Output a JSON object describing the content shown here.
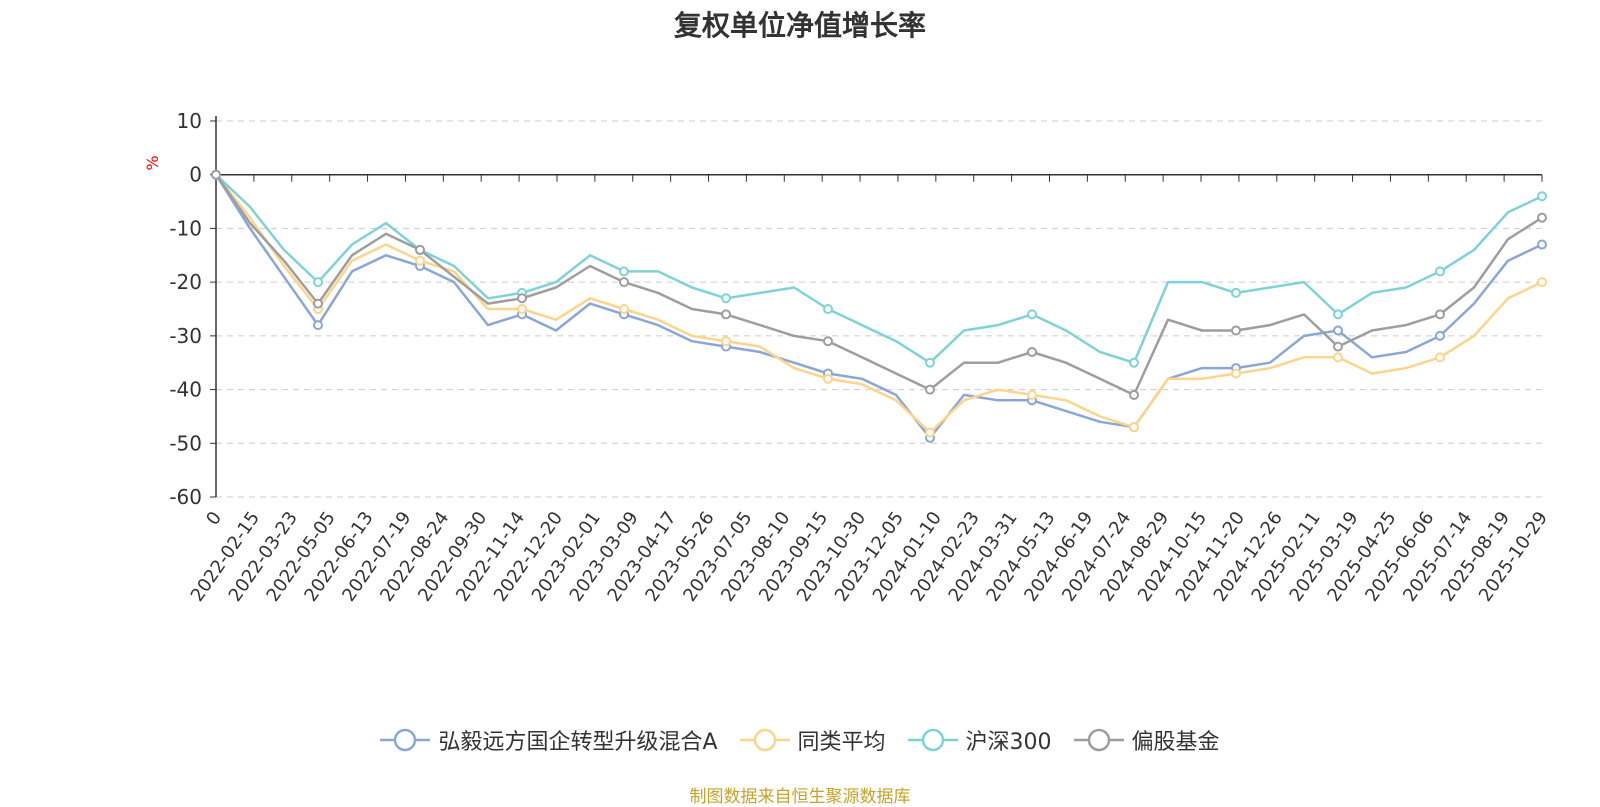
{
  "chart_data": {
    "type": "line",
    "title": "复权单位净值增长率",
    "ylabel": "%",
    "ylim": [
      -60,
      10
    ],
    "yticks": [
      10,
      0,
      -10,
      -20,
      -30,
      -40,
      -50,
      -60
    ],
    "grid": true,
    "legend_position": "bottom",
    "x_tick_labels": [
      "0",
      "2022-02-15",
      "2022-03-23",
      "2022-05-05",
      "2022-06-13",
      "2022-07-19",
      "2022-08-24",
      "2022-09-30",
      "2022-11-14",
      "2022-12-20",
      "2023-02-01",
      "2023-03-09",
      "2023-04-17",
      "2023-05-26",
      "2023-07-05",
      "2023-08-10",
      "2023-09-15",
      "2023-10-30",
      "2023-12-05",
      "2024-01-10",
      "2024-02-23",
      "2024-03-31",
      "2024-05-13",
      "2024-06-19",
      "2024-07-24",
      "2024-08-29",
      "2024-10-15",
      "2024-11-20",
      "2024-12-26",
      "2025-02-11",
      "2025-03-19",
      "2025-04-25",
      "2025-06-06",
      "2025-07-14",
      "2025-08-19",
      "2025-10-29"
    ],
    "series": [
      {
        "name": "弘毅远方国企转型升级混合A",
        "color": "#8aa7d8",
        "values": [
          0,
          -10,
          -19,
          -28,
          -18,
          -15,
          -17,
          -20,
          -28,
          -26,
          -29,
          -24,
          -26,
          -28,
          -31,
          -32,
          -33,
          -35,
          -37,
          -38,
          -41,
          -49,
          -41,
          -42,
          -42,
          -44,
          -46,
          -47,
          -38,
          -36,
          -36,
          -35,
          -30,
          -29,
          -34,
          -33,
          -30,
          -24,
          -16,
          -13
        ]
      },
      {
        "name": "同类平均",
        "color": "#fdd58a",
        "values": [
          0,
          -8,
          -17,
          -25,
          -16,
          -13,
          -16,
          -18,
          -25,
          -25,
          -27,
          -23,
          -25,
          -27,
          -30,
          -31,
          -32,
          -36,
          -38,
          -39,
          -42,
          -48,
          -42,
          -40,
          -41,
          -42,
          -45,
          -47,
          -38,
          -38,
          -37,
          -36,
          -34,
          -34,
          -37,
          -36,
          -34,
          -30,
          -23,
          -20
        ]
      },
      {
        "name": "沪深300",
        "color": "#7ed3d6",
        "values": [
          0,
          -6,
          -14,
          -20,
          -13,
          -9,
          -14,
          -17,
          -23,
          -22,
          -20,
          -15,
          -18,
          -18,
          -21,
          -23,
          -22,
          -21,
          -25,
          -28,
          -31,
          -35,
          -29,
          -28,
          -26,
          -29,
          -33,
          -35,
          -20,
          -20,
          -22,
          -21,
          -20,
          -26,
          -22,
          -21,
          -18,
          -14,
          -7,
          -4
        ]
      },
      {
        "name": "偏股基金",
        "color": "#9e9e9e",
        "values": [
          0,
          -9,
          -16,
          -24,
          -15,
          -11,
          -14,
          -19,
          -24,
          -23,
          -21,
          -17,
          -20,
          -22,
          -25,
          -26,
          -28,
          -30,
          -31,
          -34,
          -37,
          -40,
          -35,
          -35,
          -33,
          -35,
          -38,
          -41,
          -27,
          -29,
          -29,
          -28,
          -26,
          -32,
          -29,
          -28,
          -26,
          -21,
          -12,
          -8
        ]
      }
    ]
  },
  "footer": {
    "source": "制图数据来自恒生聚源数据库"
  }
}
